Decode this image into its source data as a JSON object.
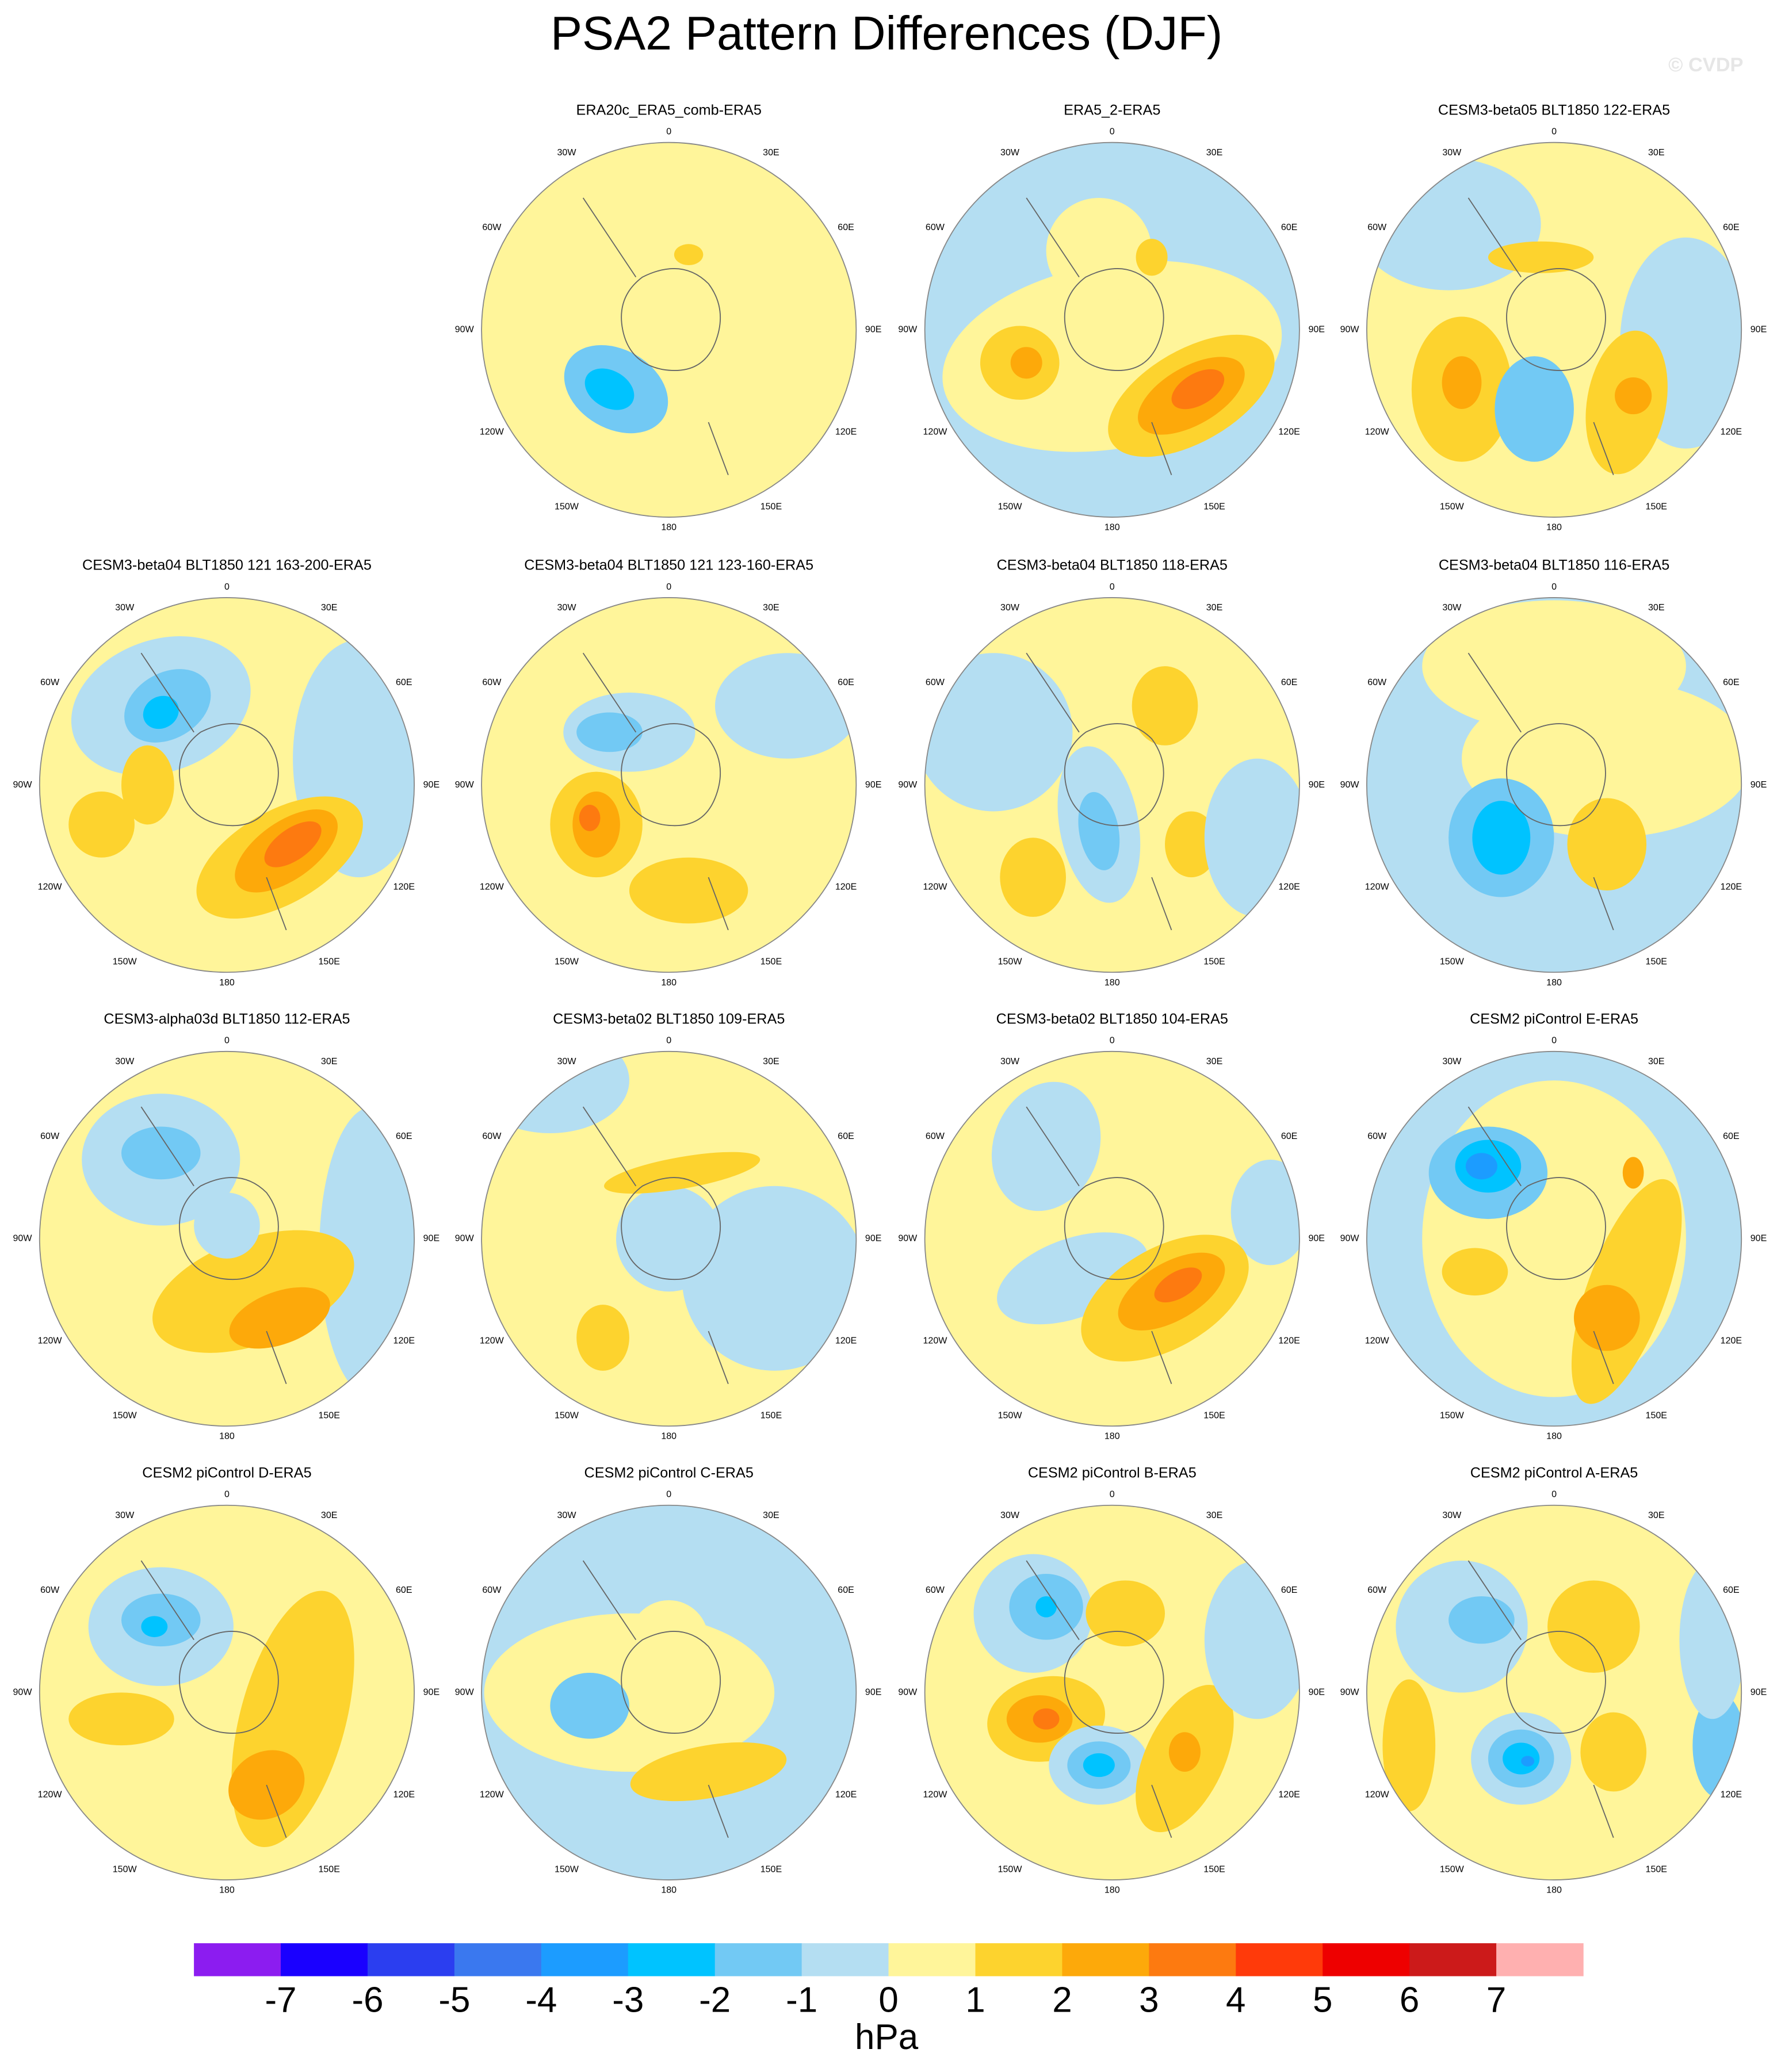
{
  "title": "PSA2 Pattern Differences (DJF)",
  "watermark": "© CVDP",
  "panels": [
    {
      "title": "ERA20c_ERA5_comb-ERA5"
    },
    {
      "title": "ERA5_2-ERA5"
    },
    {
      "title": "CESM3-beta05 BLT1850 122-ERA5"
    },
    {
      "title": "CESM3-beta04 BLT1850 121 163-200-ERA5"
    },
    {
      "title": "CESM3-beta04 BLT1850 121 123-160-ERA5"
    },
    {
      "title": "CESM3-beta04 BLT1850 118-ERA5"
    },
    {
      "title": "CESM3-beta04 BLT1850 116-ERA5"
    },
    {
      "title": "CESM3-alpha03d BLT1850 112-ERA5"
    },
    {
      "title": "CESM3-beta02 BLT1850 109-ERA5"
    },
    {
      "title": "CESM3-beta02 BLT1850 104-ERA5"
    },
    {
      "title": "CESM2 piControl E-ERA5"
    },
    {
      "title": "CESM2 piControl D-ERA5"
    },
    {
      "title": "CESM2 piControl C-ERA5"
    },
    {
      "title": "CESM2 piControl B-ERA5"
    },
    {
      "title": "CESM2 piControl A-ERA5"
    }
  ],
  "lon_labels": [
    "0",
    "30E",
    "60E",
    "90E",
    "120E",
    "150E",
    "180",
    "150W",
    "120W",
    "90W",
    "60W",
    "30W"
  ],
  "colorbar": {
    "colors": [
      "#8c1cf0",
      "#1a00ff",
      "#2b3ef0",
      "#3a78ef",
      "#1c9cff",
      "#00c3ff",
      "#72c9f4",
      "#b4def2",
      "#fff59a",
      "#fdd32e",
      "#fda90a",
      "#fd7a10",
      "#ff3a0a",
      "#ee0000",
      "#cc1a1a",
      "#ffb0b0"
    ],
    "ticks": [
      -7,
      -6,
      -5,
      -4,
      -3,
      -2,
      -1,
      0,
      1,
      2,
      3,
      4,
      5,
      6,
      7
    ],
    "label": "hPa"
  }
}
